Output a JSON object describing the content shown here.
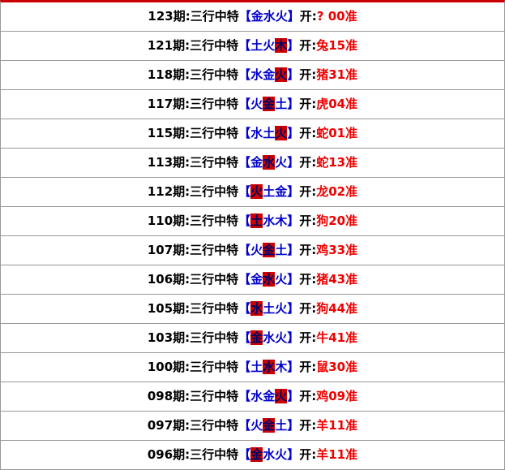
{
  "bracket_open": "【",
  "bracket_close": "】",
  "draw_label": "开:",
  "rows": [
    {
      "issue": "123期:三行中特",
      "elements": [
        "金",
        "水",
        "火"
      ],
      "hit": null,
      "result": "? 00准"
    },
    {
      "issue": "121期:三行中特",
      "elements": [
        "土",
        "火",
        "木"
      ],
      "hit": 2,
      "result": "兔15准"
    },
    {
      "issue": "118期:三行中特",
      "elements": [
        "水",
        "金",
        "火"
      ],
      "hit": 2,
      "result": "猪31准"
    },
    {
      "issue": "117期:三行中特",
      "elements": [
        "火",
        "金",
        "土"
      ],
      "hit": 1,
      "result": "虎04准"
    },
    {
      "issue": "115期:三行中特",
      "elements": [
        "水",
        "土",
        "火"
      ],
      "hit": 2,
      "result": "蛇01准"
    },
    {
      "issue": "113期:三行中特",
      "elements": [
        "金",
        "水",
        "火"
      ],
      "hit": 1,
      "result": "蛇13准"
    },
    {
      "issue": "112期:三行中特",
      "elements": [
        "火",
        "土",
        "金"
      ],
      "hit": 0,
      "result": "龙02准"
    },
    {
      "issue": "110期:三行中特",
      "elements": [
        "土",
        "水",
        "木"
      ],
      "hit": 0,
      "result": "狗20准"
    },
    {
      "issue": "107期:三行中特",
      "elements": [
        "火",
        "金",
        "土"
      ],
      "hit": 1,
      "result": "鸡33准"
    },
    {
      "issue": "106期:三行中特",
      "elements": [
        "金",
        "水",
        "火"
      ],
      "hit": 1,
      "result": "猪43准"
    },
    {
      "issue": "105期:三行中特",
      "elements": [
        "水",
        "土",
        "火"
      ],
      "hit": 0,
      "result": "狗44准"
    },
    {
      "issue": "103期:三行中特",
      "elements": [
        "金",
        "水",
        "火"
      ],
      "hit": 0,
      "result": "牛41准"
    },
    {
      "issue": "100期:三行中特",
      "elements": [
        "土",
        "水",
        "木"
      ],
      "hit": 1,
      "result": "鼠30准"
    },
    {
      "issue": "098期:三行中特",
      "elements": [
        "水",
        "金",
        "火"
      ],
      "hit": 2,
      "result": "鸡09准"
    },
    {
      "issue": "097期:三行中特",
      "elements": [
        "火",
        "金",
        "土"
      ],
      "hit": 1,
      "result": "羊11准"
    },
    {
      "issue": "096期:三行中特",
      "elements": [
        "金",
        "水",
        "火"
      ],
      "hit": 0,
      "result": "羊11准"
    }
  ]
}
